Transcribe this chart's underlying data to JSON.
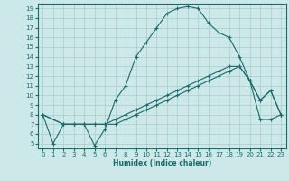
{
  "title": "",
  "xlabel": "Humidex (Indice chaleur)",
  "ylabel": "",
  "bg_color": "#cce8e8",
  "line_color": "#1a6b6b",
  "grid_color": "#aacccc",
  "xlim": [
    -0.5,
    23.5
  ],
  "ylim": [
    4.5,
    19.5
  ],
  "xticks": [
    0,
    1,
    2,
    3,
    4,
    5,
    6,
    7,
    8,
    9,
    10,
    11,
    12,
    13,
    14,
    15,
    16,
    17,
    18,
    19,
    20,
    21,
    22,
    23
  ],
  "yticks": [
    5,
    6,
    7,
    8,
    9,
    10,
    11,
    12,
    13,
    14,
    15,
    16,
    17,
    18,
    19
  ],
  "line1_x": [
    0,
    1,
    2,
    3,
    4,
    5,
    6,
    7,
    8,
    9,
    10,
    11,
    12,
    13,
    14,
    15,
    16,
    17,
    18,
    19,
    20,
    21,
    22,
    23
  ],
  "line1_y": [
    8,
    5,
    7,
    7,
    7,
    4.8,
    6.5,
    9.5,
    11,
    14,
    15.5,
    17,
    18.5,
    19,
    19.2,
    19,
    17.5,
    16.5,
    16,
    14,
    11.5,
    9.5,
    10.5,
    8
  ],
  "line2_x": [
    0,
    2,
    3,
    4,
    5,
    6,
    7,
    8,
    9,
    10,
    11,
    12,
    13,
    14,
    15,
    16,
    17,
    18,
    19,
    20,
    21,
    22,
    23
  ],
  "line2_y": [
    8,
    7,
    7,
    7,
    7,
    7,
    7.5,
    8,
    8.5,
    9,
    9.5,
    10,
    10.5,
    11,
    11.5,
    12,
    12.5,
    13,
    13,
    11.5,
    9.5,
    10.5,
    8
  ],
  "line3_x": [
    0,
    2,
    3,
    4,
    5,
    6,
    7,
    8,
    9,
    10,
    11,
    12,
    13,
    14,
    15,
    16,
    17,
    18,
    19,
    20,
    21,
    22,
    23
  ],
  "line3_y": [
    8,
    7,
    7,
    7,
    7,
    7,
    7,
    7.5,
    8,
    8.5,
    9,
    9.5,
    10,
    10.5,
    11,
    11.5,
    12,
    12.5,
    13,
    11.5,
    7.5,
    7.5,
    8
  ]
}
